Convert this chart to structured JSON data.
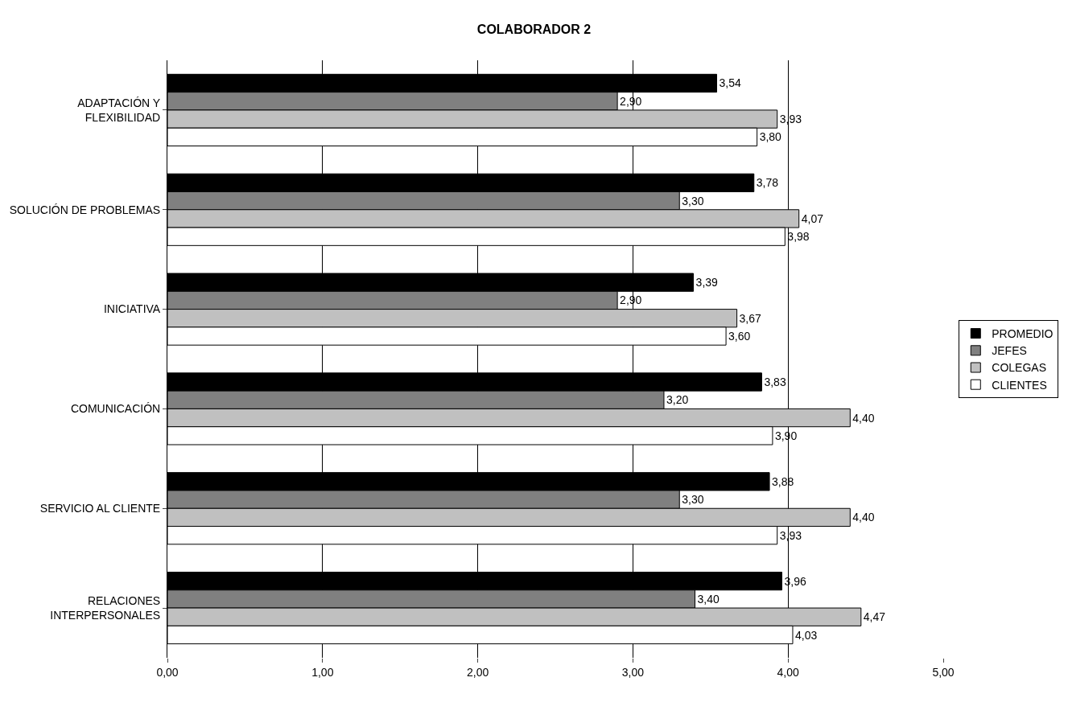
{
  "chart_data": {
    "type": "bar",
    "orientation": "horizontal",
    "title": "COLABORADOR 2",
    "categories": [
      "ADAPTACIÓN Y\nFLEXIBILIDAD",
      "SOLUCIÓN DE PROBLEMAS",
      "INICIATIVA",
      "COMUNICACIÓN",
      "SERVICIO AL CLIENTE",
      "RELACIONES\nINTERPERSONALES"
    ],
    "series": [
      {
        "name": "PROMEDIO",
        "color": "#000000",
        "values": [
          3.54,
          3.78,
          3.39,
          3.83,
          3.88,
          3.96
        ],
        "value_labels": [
          "3,54",
          "3,78",
          "3,39",
          "3,83",
          "3,88",
          "3,96"
        ]
      },
      {
        "name": "JEFES",
        "color": "#808080",
        "values": [
          2.9,
          3.3,
          2.9,
          3.2,
          3.3,
          3.4
        ],
        "value_labels": [
          "2,90",
          "3,30",
          "2,90",
          "3,20",
          "3,30",
          "3,40"
        ]
      },
      {
        "name": "COLEGAS",
        "color": "#c0c0c0",
        "values": [
          3.93,
          4.07,
          3.67,
          4.4,
          4.4,
          4.47
        ],
        "value_labels": [
          "3,93",
          "4,07",
          "3,67",
          "4,40",
          "4,40",
          "4,47"
        ]
      },
      {
        "name": "CLIENTES",
        "color": "#ffffff",
        "values": [
          3.8,
          3.98,
          3.6,
          3.9,
          3.93,
          4.03
        ],
        "value_labels": [
          "3,80",
          "3,98",
          "3,60",
          "3,90",
          "3,93",
          "4,03"
        ]
      }
    ],
    "xlim": [
      0,
      5
    ],
    "xticks": [
      {
        "value": 0,
        "label": "0,00"
      },
      {
        "value": 1,
        "label": "1,00"
      },
      {
        "value": 2,
        "label": "2,00"
      },
      {
        "value": 3,
        "label": "3,00"
      },
      {
        "value": 4,
        "label": "4,00"
      },
      {
        "value": 5,
        "label": "5,00"
      }
    ],
    "grid": "x",
    "legend": "right"
  }
}
